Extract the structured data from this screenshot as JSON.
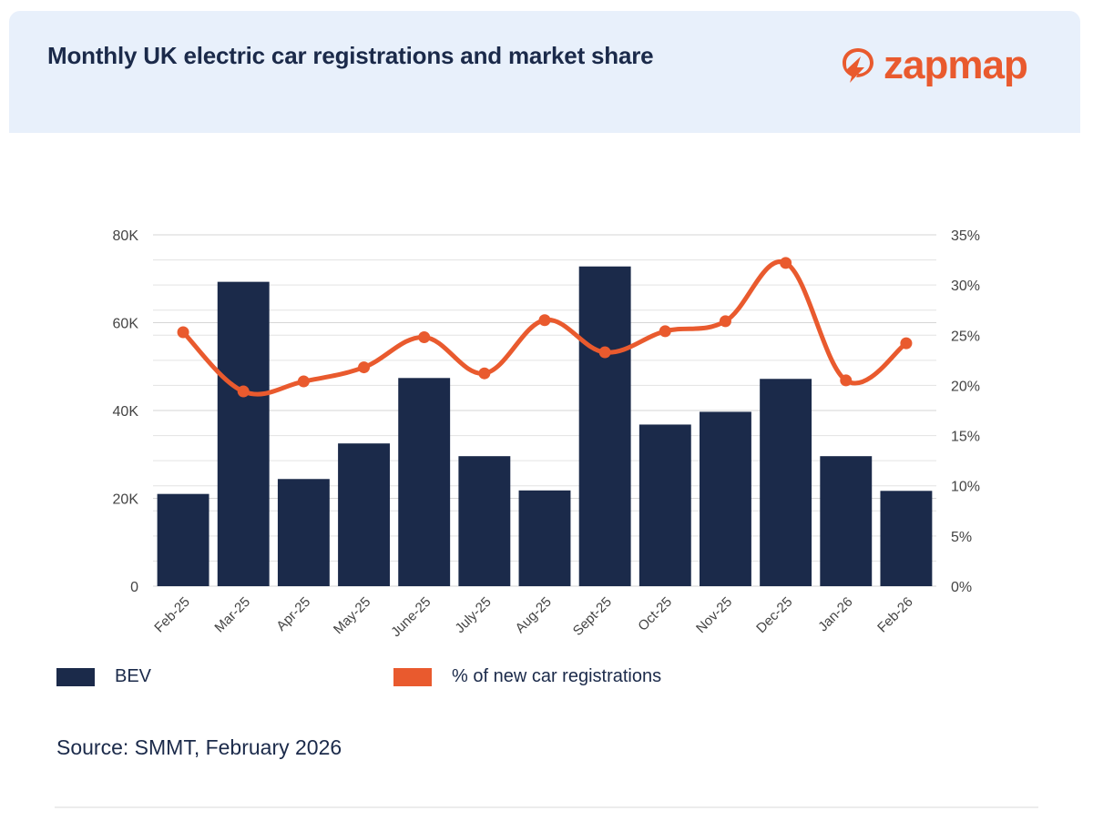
{
  "header": {
    "title": "Monthly UK electric car registrations and market share",
    "logo_text": "zapmap"
  },
  "colors": {
    "header_bg": "#e8f0fb",
    "bar": "#1b2a4a",
    "line": "#e95a2e",
    "grid": "#e3e3e3",
    "text": "#1b2a4a",
    "tick_text": "#444444"
  },
  "legend": {
    "bar_label": "BEV",
    "line_label": "% of new car registrations"
  },
  "source": "Source: SMMT, February 2026",
  "chart_data": {
    "type": "bar",
    "categories": [
      "Feb-25",
      "Mar-25",
      "Apr-25",
      "May-25",
      "June-25",
      "July-25",
      "Aug-25",
      "Sept-25",
      "Oct-25",
      "Nov-25",
      "Dec-25",
      "Jan-26",
      "Feb-26"
    ],
    "series": [
      {
        "name": "BEV",
        "type": "bar",
        "axis": "left",
        "values": [
          21000,
          69300,
          24400,
          32500,
          47400,
          29600,
          21800,
          72800,
          36800,
          39700,
          47200,
          29600,
          21700
        ]
      },
      {
        "name": "% of new car registrations",
        "type": "line",
        "axis": "right",
        "values": [
          25.3,
          19.4,
          20.4,
          21.8,
          24.8,
          21.2,
          26.5,
          23.3,
          25.4,
          26.4,
          32.2,
          20.5,
          24.2
        ]
      }
    ],
    "y_left": {
      "ylim": [
        0,
        80000
      ],
      "ticks": [
        0,
        20000,
        40000,
        60000,
        80000
      ],
      "tick_labels": [
        "0",
        "20K",
        "40K",
        "60K",
        "80K"
      ]
    },
    "y_right": {
      "ylim": [
        0,
        35
      ],
      "ticks": [
        0,
        5,
        10,
        15,
        20,
        25,
        30,
        35
      ],
      "tick_labels": [
        "0%",
        "5%",
        "10%",
        "15%",
        "20%",
        "25%",
        "30%",
        "35%"
      ]
    },
    "grid": true,
    "legend_position": "bottom"
  }
}
